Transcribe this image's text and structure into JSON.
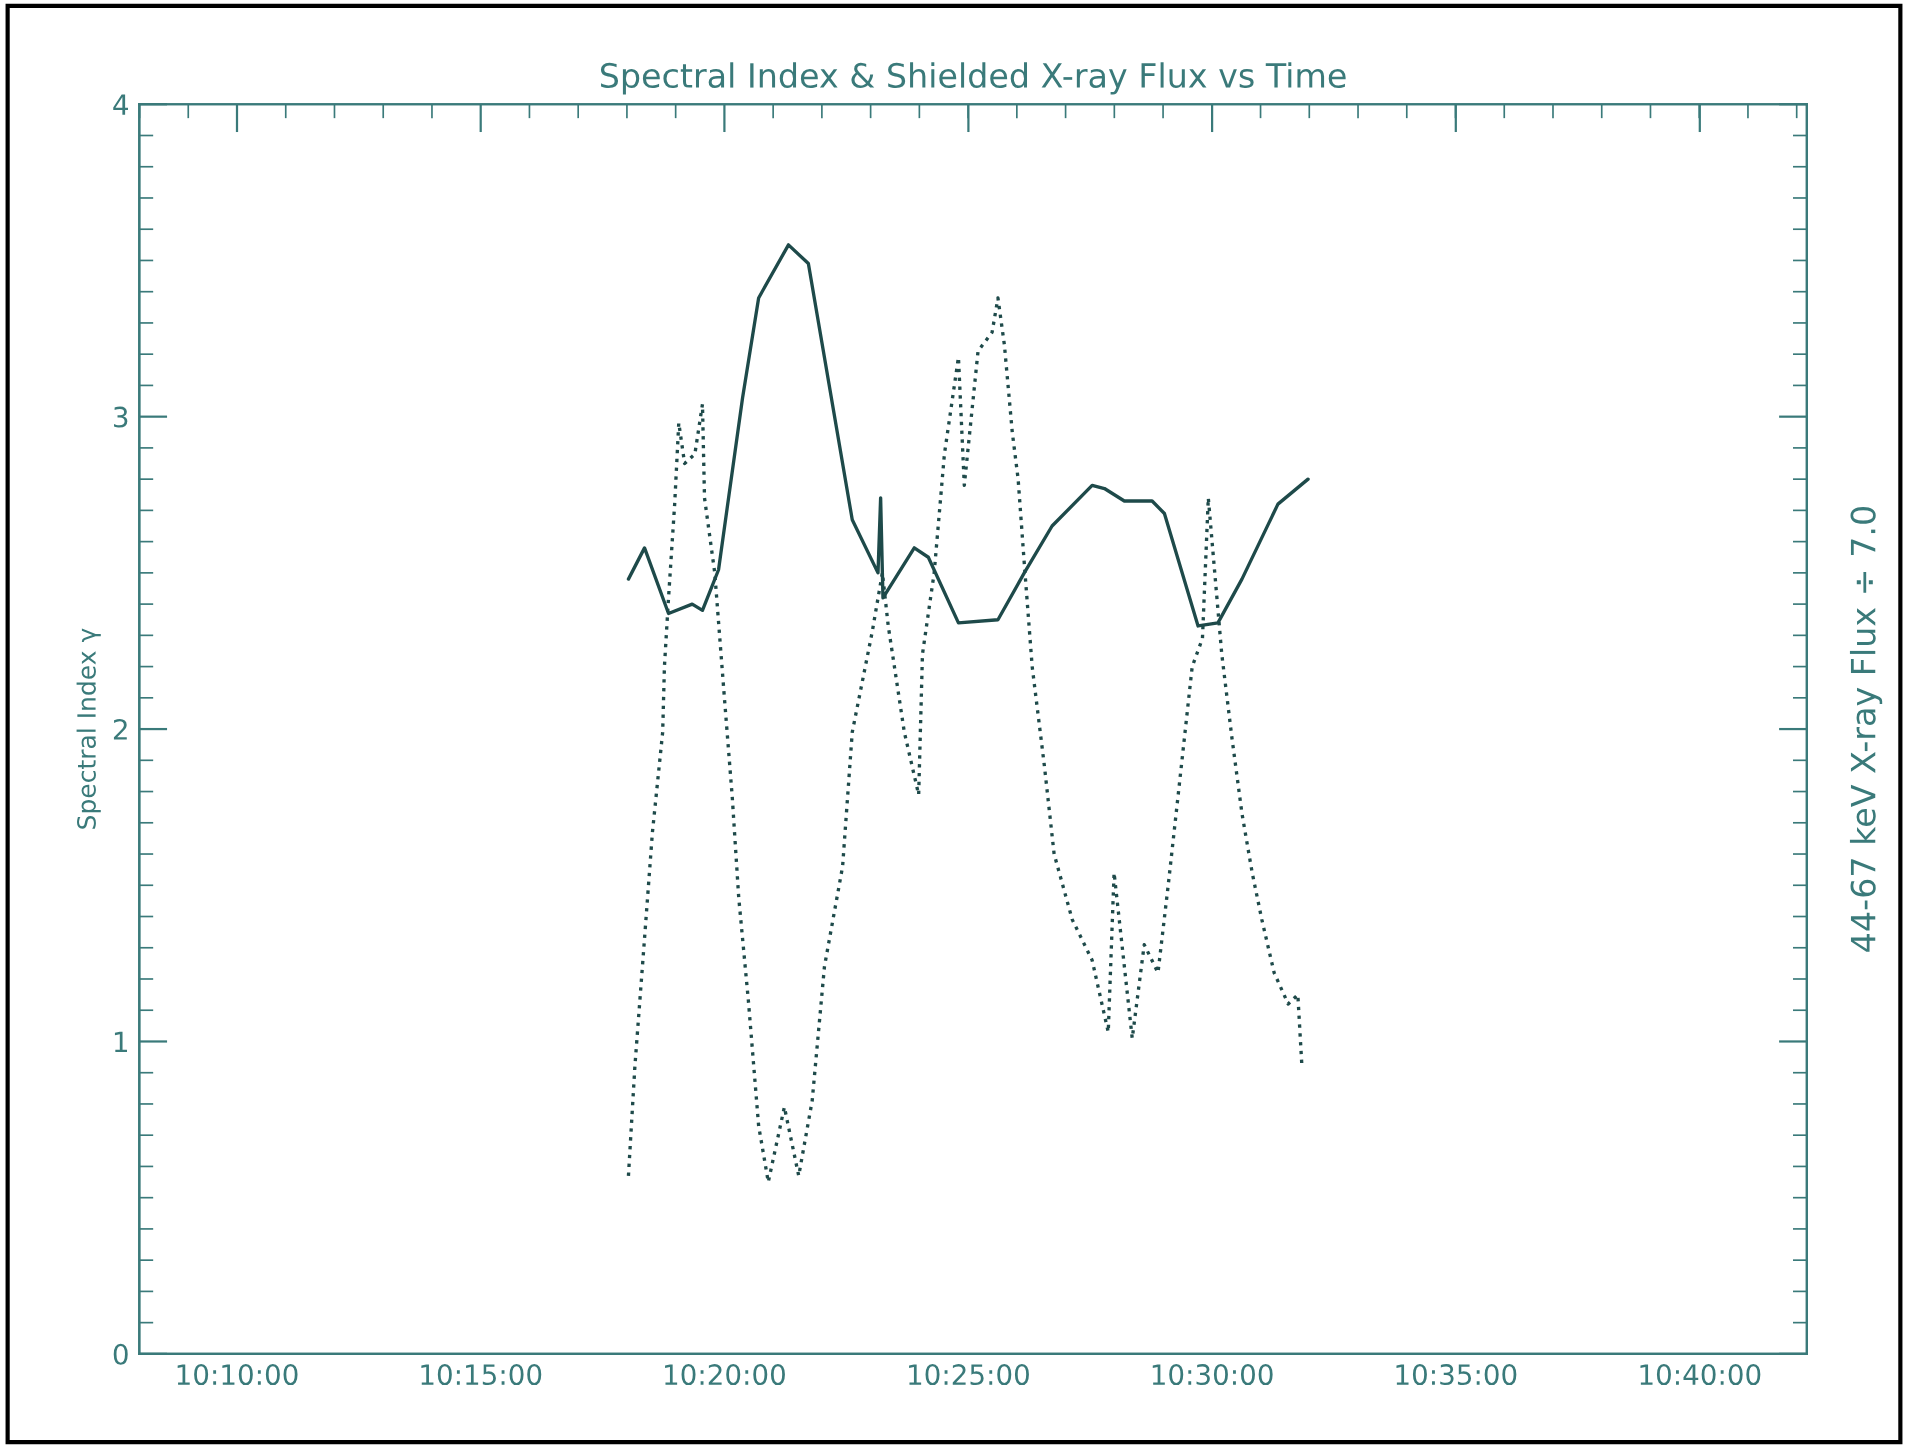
{
  "chart_data": {
    "type": "line",
    "title": "Spectral Index & Shielded X-ray Flux vs Time",
    "ylabel": "Spectral Index γ",
    "y2label": "44-67 keV X-ray Flux ÷ 7.0",
    "xlim": [
      10.1333,
      10.7033
    ],
    "ylim": [
      0,
      4
    ],
    "yticks": [
      0,
      1,
      2,
      3,
      4
    ],
    "xticks": [
      {
        "value": 10.1667,
        "label": "10:10:00"
      },
      {
        "value": 10.25,
        "label": "10:15:00"
      },
      {
        "value": 10.3333,
        "label": "10:20:00"
      },
      {
        "value": 10.4167,
        "label": "10:25:00"
      },
      {
        "value": 10.5,
        "label": "10:30:00"
      },
      {
        "value": 10.5833,
        "label": "10:35:00"
      },
      {
        "value": 10.6667,
        "label": "10:40:00"
      }
    ],
    "series": [
      {
        "color": "#1e4a4a",
        "line_style": "solid",
        "x": [
          10.3005,
          10.306,
          10.3142,
          10.3223,
          10.3258,
          10.3313,
          10.3395,
          10.345,
          10.3552,
          10.362,
          10.377,
          10.3858,
          10.3867,
          10.3875,
          10.3982,
          10.403,
          10.4133,
          10.4268,
          10.4358,
          10.4453,
          10.459,
          10.4632,
          10.47,
          10.4795,
          10.4837,
          10.4952,
          10.502,
          10.5102,
          10.5225,
          10.5328
        ],
        "values": [
          2.48,
          2.58,
          2.37,
          2.4,
          2.38,
          2.51,
          3.06,
          3.38,
          3.55,
          3.49,
          2.67,
          2.5,
          2.74,
          2.42,
          2.58,
          2.55,
          2.34,
          2.35,
          2.5,
          2.65,
          2.78,
          2.77,
          2.73,
          2.73,
          2.69,
          2.33,
          2.34,
          2.48,
          2.72,
          2.8
        ]
      },
      {
        "color": "#1e4a4a",
        "line_style": "dotted",
        "x": [
          10.3005,
          10.3027,
          10.306,
          10.3087,
          10.3122,
          10.3128,
          10.3142,
          10.3163,
          10.3177,
          10.3197,
          10.3232,
          10.3258,
          10.3265,
          10.33,
          10.3333,
          10.336,
          10.3382,
          10.3415,
          10.345,
          10.3483,
          10.3538,
          10.3587,
          10.3633,
          10.3675,
          10.3737,
          10.377,
          10.3838,
          10.3873,
          10.3893,
          10.3948,
          10.3997,
          10.401,
          10.405,
          10.4085,
          10.4133,
          10.4153,
          10.42,
          10.4248,
          10.4268,
          10.429,
          10.4317,
          10.4337,
          10.4358,
          10.4385,
          10.4427,
          10.446,
          10.4522,
          10.459,
          10.4645,
          10.4665,
          10.4727,
          10.4768,
          10.4815,
          10.485,
          10.4883,
          10.4932,
          10.4967,
          10.4987,
          10.5033,
          10.5068,
          10.5102,
          10.5137,
          10.517,
          10.5212,
          10.526,
          10.5293,
          10.5307
        ],
        "values": [
          0.57,
          0.92,
          1.33,
          1.67,
          1.99,
          2.2,
          2.42,
          2.72,
          2.98,
          2.85,
          2.88,
          3.04,
          2.74,
          2.5,
          2.1,
          1.78,
          1.46,
          1.13,
          0.73,
          0.55,
          0.79,
          0.57,
          0.81,
          1.24,
          1.56,
          1.99,
          2.31,
          2.5,
          2.33,
          1.99,
          1.79,
          2.24,
          2.5,
          2.88,
          3.19,
          2.78,
          3.21,
          3.27,
          3.38,
          3.23,
          2.95,
          2.8,
          2.53,
          2.2,
          1.88,
          1.6,
          1.39,
          1.26,
          1.03,
          1.54,
          1.01,
          1.31,
          1.22,
          1.5,
          1.78,
          2.2,
          2.29,
          2.74,
          2.24,
          1.97,
          1.73,
          1.54,
          1.39,
          1.22,
          1.12,
          1.15,
          0.92
        ]
      }
    ]
  }
}
